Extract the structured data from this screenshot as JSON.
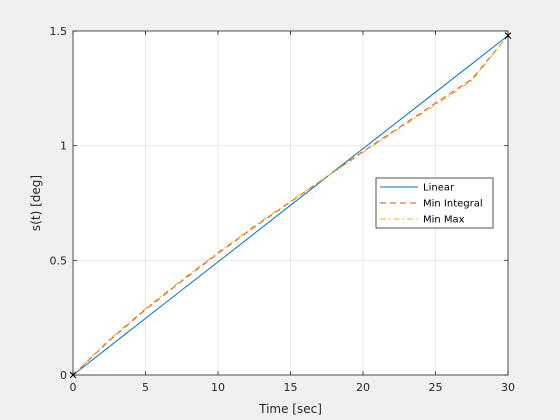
{
  "chart_data": {
    "type": "line",
    "title": "",
    "xlabel": "Time [sec]",
    "ylabel": "s(t) [deg]",
    "xlim": [
      0,
      30
    ],
    "ylim": [
      0,
      1.5
    ],
    "xticks": [
      "0",
      "5",
      "10",
      "15",
      "20",
      "25",
      "30"
    ],
    "yticks": [
      "0",
      "0.5",
      "1",
      "1.5"
    ],
    "grid": true,
    "legend_position": "right",
    "markers": [
      {
        "x": 0,
        "y": 0,
        "symbol": "x"
      },
      {
        "x": 30,
        "y": 1.48,
        "symbol": "x"
      }
    ],
    "series": [
      {
        "name": "Linear",
        "style": "solid",
        "color": "#0072BD",
        "x": [
          0,
          5,
          10,
          15,
          20,
          25,
          30
        ],
        "y": [
          0,
          0.247,
          0.493,
          0.74,
          0.987,
          1.233,
          1.48
        ]
      },
      {
        "name": "Min Integral",
        "style": "dashed",
        "color": "#D95319",
        "x": [
          0,
          2.5,
          5,
          7.5,
          10,
          12.5,
          15,
          17.5,
          20,
          22.5,
          25,
          27.5,
          30
        ],
        "y": [
          0,
          0.15,
          0.285,
          0.41,
          0.53,
          0.645,
          0.755,
          0.865,
          0.975,
          1.08,
          1.185,
          1.29,
          1.48
        ]
      },
      {
        "name": "Min Max",
        "style": "dashdot",
        "color": "#EDB120",
        "x": [
          0,
          2.5,
          5,
          7.5,
          10,
          12.5,
          15,
          17.5,
          20,
          22.5,
          25,
          27.5,
          30
        ],
        "y": [
          0,
          0.155,
          0.29,
          0.415,
          0.535,
          0.65,
          0.758,
          0.865,
          0.97,
          1.075,
          1.178,
          1.283,
          1.48
        ]
      }
    ]
  }
}
